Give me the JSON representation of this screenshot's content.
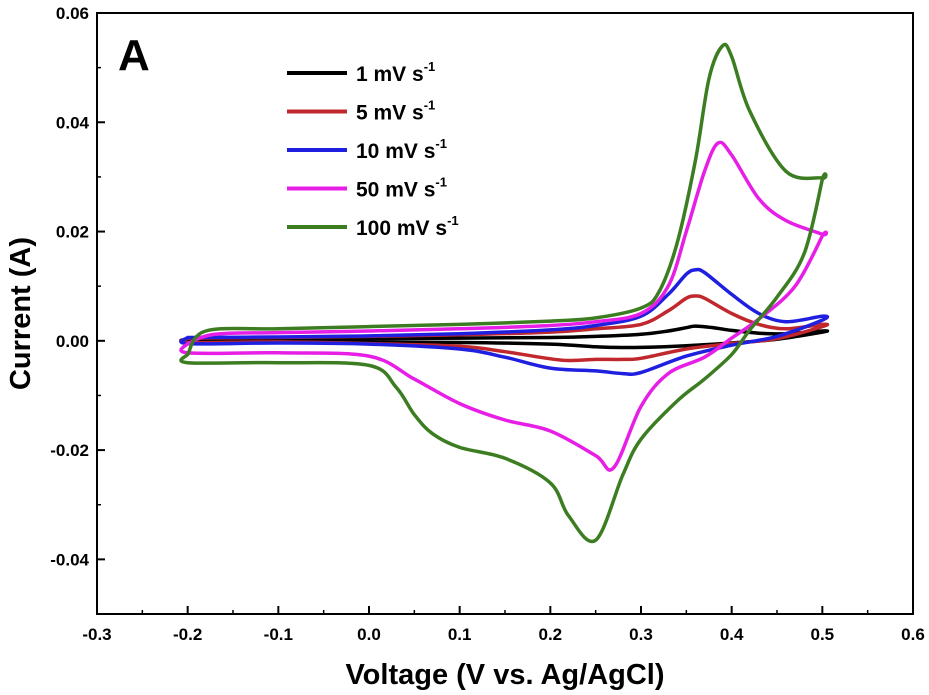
{
  "chart_data": {
    "type": "line",
    "panel_label": "A",
    "xlabel": "Voltage (V vs. Ag/AgCl)",
    "ylabel": "Current (A)",
    "xlim": [
      -0.3,
      0.6
    ],
    "ylim": [
      -0.05,
      0.06
    ],
    "x_ticks": [
      -0.3,
      -0.2,
      -0.1,
      0.0,
      0.1,
      0.2,
      0.3,
      0.4,
      0.5,
      0.6
    ],
    "x_tick_labels": [
      "-0.3",
      "-0.2",
      "-0.1",
      "0.0",
      "0.1",
      "0.2",
      "0.3",
      "0.4",
      "0.5",
      "0.6"
    ],
    "y_ticks": [
      -0.04,
      -0.02,
      0.0,
      0.02,
      0.04,
      0.06
    ],
    "y_tick_labels": [
      "-0.04",
      "-0.02",
      "0.00",
      "0.02",
      "0.04",
      "0.06"
    ],
    "grid": false,
    "legend_position": "top-left",
    "series": [
      {
        "name": "1 mV s",
        "name_superscript": "-1",
        "color": "#000000",
        "x": [
          -0.2,
          -0.1,
          0.0,
          0.1,
          0.2,
          0.25,
          0.3,
          0.33,
          0.35,
          0.36,
          0.38,
          0.4,
          0.43,
          0.46,
          0.5,
          0.5,
          0.45,
          0.4,
          0.35,
          0.3,
          0.27,
          0.25,
          0.2,
          0.1,
          0.0,
          -0.1,
          -0.2,
          -0.2
        ],
        "y": [
          0.0003,
          0.0003,
          0.0004,
          0.0005,
          0.0006,
          0.0008,
          0.0012,
          0.0018,
          0.0024,
          0.0027,
          0.0024,
          0.0019,
          0.0014,
          0.0013,
          0.0018,
          0.0016,
          0.0003,
          -0.0004,
          -0.0009,
          -0.0012,
          -0.0012,
          -0.0011,
          -0.0006,
          -0.0003,
          -0.0002,
          -0.0001,
          0.0,
          0.0003
        ]
      },
      {
        "name": "5 mV s",
        "name_superscript": "-1",
        "color": "#c0282d",
        "x": [
          -0.2,
          -0.1,
          0.0,
          0.1,
          0.2,
          0.25,
          0.3,
          0.33,
          0.35,
          0.36,
          0.37,
          0.4,
          0.43,
          0.46,
          0.5,
          0.5,
          0.45,
          0.4,
          0.35,
          0.3,
          0.28,
          0.25,
          0.22,
          0.2,
          0.15,
          0.1,
          0.0,
          -0.1,
          -0.2,
          -0.2
        ],
        "y": [
          0.0005,
          0.0006,
          0.0008,
          0.0011,
          0.0016,
          0.0022,
          0.003,
          0.0055,
          0.0078,
          0.0082,
          0.0078,
          0.005,
          0.003,
          0.0022,
          0.003,
          0.0026,
          0.0004,
          -0.0005,
          -0.0015,
          -0.0032,
          -0.0034,
          -0.0034,
          -0.0036,
          -0.0033,
          -0.002,
          -0.001,
          -0.0005,
          -0.0002,
          -0.0003,
          0.0005
        ]
      },
      {
        "name": "10 mV s",
        "name_superscript": "-1",
        "color": "#1f1fe0",
        "x": [
          -0.2,
          -0.1,
          0.0,
          0.1,
          0.2,
          0.25,
          0.3,
          0.33,
          0.35,
          0.36,
          0.37,
          0.4,
          0.43,
          0.46,
          0.5,
          0.5,
          0.45,
          0.4,
          0.35,
          0.3,
          0.28,
          0.25,
          0.2,
          0.15,
          0.1,
          0.0,
          -0.1,
          -0.2,
          -0.2
        ],
        "y": [
          0.0006,
          0.0007,
          0.0009,
          0.0013,
          0.002,
          0.0028,
          0.0045,
          0.0085,
          0.0122,
          0.013,
          0.0125,
          0.0085,
          0.005,
          0.0035,
          0.0045,
          0.0038,
          0.0008,
          -0.0008,
          -0.0028,
          -0.0058,
          -0.006,
          -0.0055,
          -0.005,
          -0.003,
          -0.0015,
          -0.0006,
          -0.0004,
          -0.0005,
          0.0006
        ]
      },
      {
        "name": "50 mV s",
        "name_superscript": "-1",
        "color": "#e61ee6",
        "x": [
          -0.2,
          -0.17,
          -0.1,
          0.0,
          0.1,
          0.2,
          0.25,
          0.3,
          0.33,
          0.35,
          0.37,
          0.385,
          0.4,
          0.43,
          0.46,
          0.5,
          0.5,
          0.47,
          0.43,
          0.4,
          0.37,
          0.33,
          0.3,
          0.27,
          0.25,
          0.2,
          0.15,
          0.1,
          0.05,
          0.0,
          -0.1,
          -0.2,
          -0.2
        ],
        "y": [
          -0.0005,
          0.0012,
          0.0015,
          0.0018,
          0.0022,
          0.0028,
          0.0035,
          0.005,
          0.01,
          0.02,
          0.031,
          0.0362,
          0.034,
          0.026,
          0.022,
          0.0195,
          0.0192,
          0.01,
          0.004,
          0.0005,
          -0.003,
          -0.006,
          -0.012,
          -0.0232,
          -0.021,
          -0.0165,
          -0.0145,
          -0.0115,
          -0.007,
          -0.0028,
          -0.0022,
          -0.0022,
          -0.0005
        ]
      },
      {
        "name": "100 mV s",
        "name_superscript": "-1",
        "color": "#3c7d22",
        "x": [
          -0.2,
          -0.18,
          -0.1,
          0.0,
          0.1,
          0.2,
          0.25,
          0.3,
          0.32,
          0.34,
          0.36,
          0.375,
          0.39,
          0.4,
          0.42,
          0.46,
          0.5,
          0.5,
          0.48,
          0.45,
          0.42,
          0.4,
          0.37,
          0.34,
          0.3,
          0.28,
          0.25,
          0.22,
          0.2,
          0.15,
          0.1,
          0.07,
          0.05,
          0.03,
          0.0,
          -0.1,
          -0.2,
          -0.2
        ],
        "y": [
          -0.0025,
          0.0018,
          0.0022,
          0.0026,
          0.003,
          0.0036,
          0.0042,
          0.006,
          0.009,
          0.018,
          0.033,
          0.048,
          0.054,
          0.052,
          0.042,
          0.031,
          0.0298,
          0.0295,
          0.016,
          0.008,
          0.002,
          -0.0025,
          -0.007,
          -0.011,
          -0.018,
          -0.0245,
          -0.0365,
          -0.032,
          -0.026,
          -0.0215,
          -0.0195,
          -0.017,
          -0.0135,
          -0.0085,
          -0.0045,
          -0.004,
          -0.004,
          -0.0025
        ]
      }
    ]
  }
}
